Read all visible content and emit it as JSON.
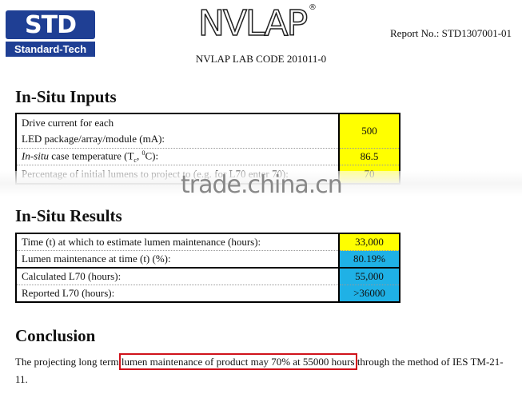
{
  "header": {
    "std_logo_mark": "STD",
    "std_logo_name": "Standard-Tech",
    "nvlap_logo": "NVLAP",
    "nvlap_lab_code": "NVLAP LAB CODE 201011-0",
    "report_no": "Report No.: STD1307001-01"
  },
  "inputs": {
    "title": "In-Situ Inputs",
    "rows": [
      {
        "label_line1": "Drive current for each",
        "label_line2": "LED package/array/module (mA):",
        "value": "500"
      },
      {
        "label_italic": "In-situ",
        "label_rest": " case temperature (T",
        "sub": "c",
        "mid": ", ",
        "sup": "0",
        "end": "C):",
        "value": "86.5"
      },
      {
        "label": "Percentage of initial lumens to project to (e.g. for L70 enter 70):",
        "value": "70"
      }
    ]
  },
  "watermark": "trade.china.cn",
  "results": {
    "title": "In-Situ Results",
    "rows": [
      {
        "label": "Time (t) at which to estimate lumen maintenance (hours):",
        "value": "33,000"
      },
      {
        "label": "Lumen maintenance at time (t) (%):",
        "value": "80.19%"
      },
      {
        "label": "Calculated L70 (hours):",
        "value": "55,000"
      },
      {
        "label": "Reported L70 (hours):",
        "value": ">36000"
      }
    ]
  },
  "conclusion": {
    "title": "Conclusion",
    "text_before": "The projecting long term ",
    "highlight": "lumen maintenance of product may 70% at 55000 hours",
    "text_after": " through the method of IES TM-21-11."
  },
  "colors": {
    "input_value": "#ffff00",
    "result_value": "#1fb1e6",
    "highlight_box": "#d0121b",
    "logo_blue": "#1f3f94"
  }
}
